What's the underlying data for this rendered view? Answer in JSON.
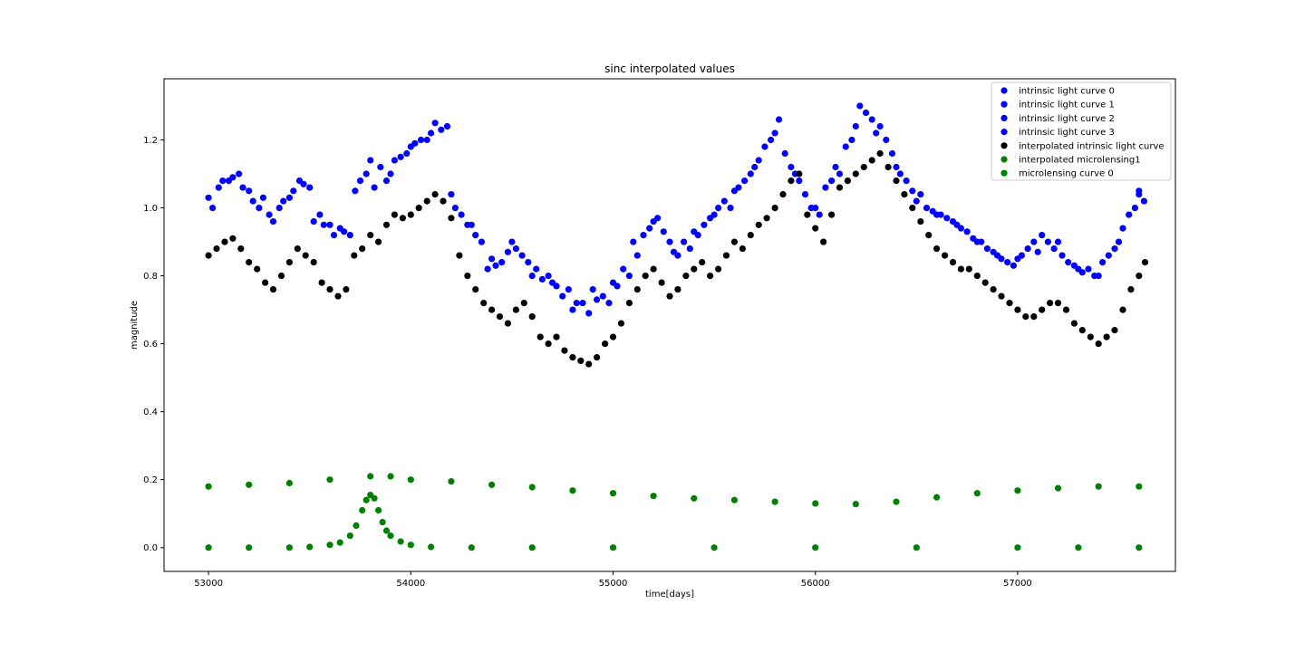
{
  "chart_data": {
    "type": "scatter",
    "title": "sinc interpolated values",
    "xlabel": "time[days]",
    "ylabel": "magnitude",
    "xlim": [
      52780,
      57780
    ],
    "ylim": [
      -0.07,
      1.38
    ],
    "xticks": [
      53000,
      54000,
      55000,
      56000,
      57000
    ],
    "yticks": [
      0.0,
      0.2,
      0.4,
      0.6,
      0.8,
      1.0,
      1.2
    ],
    "grid": false,
    "legend_position": "top-right",
    "series": [
      {
        "name": "intrinsic light curve 0",
        "color": "#0000ff",
        "x": [
          53000,
          53100,
          53200,
          53300,
          53400,
          53500,
          53600,
          53700,
          53750,
          53800,
          53900,
          54000,
          54100,
          54200,
          54300,
          54400,
          54500,
          54600,
          54700,
          54800,
          54900,
          55000,
          55100,
          55200,
          55300,
          55400,
          55500,
          55600,
          55700,
          55800,
          55900,
          56000,
          56100,
          56200,
          56300,
          56400,
          56500,
          56600,
          56700,
          56800,
          56900,
          57000,
          57100,
          57200,
          57300,
          57400,
          57500,
          57600
        ],
        "y": [
          1.03,
          1.08,
          1.05,
          0.98,
          1.03,
          1.06,
          0.95,
          0.92,
          1.08,
          1.14,
          1.1,
          1.18,
          1.22,
          1.04,
          0.95,
          0.85,
          0.9,
          0.8,
          0.78,
          0.7,
          0.76,
          0.78,
          0.9,
          0.96,
          0.87,
          0.93,
          0.98,
          1.05,
          1.12,
          1.22,
          1.1,
          1.0,
          1.12,
          1.24,
          1.22,
          1.12,
          1.02,
          0.98,
          0.95,
          0.9,
          0.86,
          0.85,
          0.87,
          0.9,
          0.82,
          0.8,
          0.9,
          1.04
        ]
      },
      {
        "name": "intrinsic light curve 1",
        "color": "#0000ff",
        "x": [
          53050,
          53150,
          53250,
          53350,
          53450,
          53550,
          53650,
          53725,
          53850,
          53950,
          54050,
          54150,
          54250,
          54350,
          54450,
          54550,
          54650,
          54750,
          54850,
          54950,
          55050,
          55150,
          55250,
          55350,
          55450,
          55550,
          55650,
          55750,
          55850,
          55950,
          56050,
          56150,
          56250,
          56350,
          56450,
          56550,
          56650,
          56750,
          56850,
          56950,
          57050,
          57150,
          57250,
          57350,
          57450,
          57550,
          57625
        ],
        "y": [
          1.06,
          1.1,
          1.0,
          1.0,
          1.08,
          0.98,
          0.94,
          1.05,
          1.12,
          1.15,
          1.2,
          1.23,
          0.98,
          0.9,
          0.84,
          0.86,
          0.79,
          0.74,
          0.72,
          0.74,
          0.82,
          0.92,
          0.93,
          0.9,
          0.95,
          1.02,
          1.08,
          1.18,
          1.16,
          1.04,
          1.06,
          1.18,
          1.28,
          1.2,
          1.08,
          1.0,
          0.97,
          0.93,
          0.88,
          0.84,
          0.88,
          0.9,
          0.84,
          0.82,
          0.86,
          0.98,
          1.02
        ]
      },
      {
        "name": "intrinsic light curve 2",
        "color": "#0000ff",
        "x": [
          53020,
          53120,
          53220,
          53320,
          53420,
          53520,
          53620,
          53780,
          53880,
          53980,
          54080,
          54180,
          54280,
          54380,
          54480,
          54580,
          54680,
          54780,
          54880,
          54980,
          55080,
          55180,
          55280,
          55380,
          55480,
          55580,
          55680,
          55780,
          55880,
          55980,
          56080,
          56180,
          56280,
          56380,
          56480,
          56580,
          56680,
          56780,
          56880,
          56980,
          57080,
          57180,
          57280,
          57380,
          57480,
          57580
        ],
        "y": [
          1.0,
          1.09,
          1.02,
          0.96,
          1.05,
          0.96,
          0.92,
          1.1,
          1.08,
          1.16,
          1.2,
          1.24,
          0.95,
          0.82,
          0.87,
          0.84,
          0.8,
          0.76,
          0.69,
          0.72,
          0.8,
          0.94,
          0.9,
          0.88,
          0.97,
          1.0,
          1.1,
          1.2,
          1.12,
          1.0,
          1.08,
          1.2,
          1.26,
          1.16,
          1.05,
          0.99,
          0.96,
          0.91,
          0.87,
          0.83,
          0.9,
          0.88,
          0.83,
          0.8,
          0.88,
          1.0
        ]
      },
      {
        "name": "intrinsic light curve 3",
        "color": "#0000ff",
        "x": [
          53070,
          53170,
          53270,
          53370,
          53470,
          53570,
          53670,
          53820,
          53920,
          54020,
          54120,
          54220,
          54320,
          54420,
          54520,
          54620,
          54720,
          54820,
          54920,
          55020,
          55120,
          55220,
          55320,
          55420,
          55520,
          55620,
          55720,
          55820,
          55920,
          56020,
          56120,
          56220,
          56320,
          56420,
          56520,
          56620,
          56720,
          56820,
          56920,
          57020,
          57120,
          57220,
          57320,
          57420,
          57520,
          57600
        ],
        "y": [
          1.08,
          1.06,
          1.03,
          1.02,
          1.07,
          0.95,
          0.93,
          1.06,
          1.14,
          1.19,
          1.25,
          1.0,
          0.92,
          0.83,
          0.88,
          0.82,
          0.77,
          0.72,
          0.73,
          0.77,
          0.86,
          0.97,
          0.86,
          0.92,
          1.0,
          1.06,
          1.14,
          1.26,
          1.08,
          0.98,
          1.1,
          1.3,
          1.24,
          1.1,
          1.04,
          0.98,
          0.94,
          0.9,
          0.85,
          0.86,
          0.92,
          0.86,
          0.81,
          0.84,
          0.94,
          1.05
        ]
      },
      {
        "name": "interpolated intrinsic light curve",
        "color": "#000000",
        "x": [
          53000,
          53040,
          53080,
          53120,
          53160,
          53200,
          53240,
          53280,
          53320,
          53360,
          53400,
          53440,
          53480,
          53520,
          53560,
          53600,
          53640,
          53680,
          53720,
          53760,
          53800,
          53840,
          53880,
          53920,
          53960,
          54000,
          54040,
          54080,
          54120,
          54160,
          54200,
          54240,
          54280,
          54320,
          54360,
          54400,
          54440,
          54480,
          54520,
          54560,
          54600,
          54640,
          54680,
          54720,
          54760,
          54800,
          54840,
          54880,
          54920,
          54960,
          55000,
          55040,
          55080,
          55120,
          55160,
          55200,
          55240,
          55280,
          55320,
          55360,
          55400,
          55440,
          55480,
          55520,
          55560,
          55600,
          55640,
          55680,
          55720,
          55760,
          55800,
          55840,
          55880,
          55920,
          55960,
          56000,
          56040,
          56080,
          56120,
          56160,
          56200,
          56240,
          56280,
          56320,
          56360,
          56400,
          56440,
          56480,
          56520,
          56560,
          56600,
          56640,
          56680,
          56720,
          56760,
          56800,
          56840,
          56880,
          56920,
          56960,
          57000,
          57040,
          57080,
          57120,
          57160,
          57200,
          57240,
          57280,
          57320,
          57360,
          57400,
          57440,
          57480,
          57520,
          57560,
          57600,
          57630
        ],
        "y": [
          0.86,
          0.88,
          0.9,
          0.91,
          0.88,
          0.84,
          0.82,
          0.78,
          0.76,
          0.8,
          0.84,
          0.88,
          0.86,
          0.84,
          0.78,
          0.76,
          0.74,
          0.76,
          0.86,
          0.88,
          0.92,
          0.9,
          0.95,
          0.98,
          0.97,
          0.98,
          1.0,
          1.02,
          1.04,
          1.02,
          0.97,
          0.86,
          0.8,
          0.76,
          0.72,
          0.7,
          0.68,
          0.66,
          0.7,
          0.72,
          0.68,
          0.62,
          0.6,
          0.62,
          0.58,
          0.56,
          0.55,
          0.54,
          0.56,
          0.6,
          0.62,
          0.66,
          0.72,
          0.76,
          0.8,
          0.82,
          0.78,
          0.74,
          0.76,
          0.8,
          0.82,
          0.84,
          0.8,
          0.82,
          0.86,
          0.9,
          0.88,
          0.92,
          0.95,
          0.97,
          1.0,
          1.04,
          1.08,
          1.1,
          0.98,
          0.94,
          0.9,
          0.98,
          1.06,
          1.08,
          1.1,
          1.12,
          1.14,
          1.16,
          1.12,
          1.08,
          1.04,
          1.0,
          0.96,
          0.92,
          0.88,
          0.86,
          0.84,
          0.82,
          0.82,
          0.8,
          0.78,
          0.76,
          0.74,
          0.72,
          0.7,
          0.68,
          0.68,
          0.7,
          0.72,
          0.72,
          0.7,
          0.66,
          0.64,
          0.62,
          0.6,
          0.62,
          0.64,
          0.7,
          0.76,
          0.8,
          0.84
        ]
      },
      {
        "name": "interpolated microlensing1",
        "color": "#008000",
        "x": [
          53000,
          53200,
          53400,
          53600,
          53800,
          53900,
          54000,
          54200,
          54400,
          54600,
          54800,
          55000,
          55200,
          55400,
          55600,
          55800,
          56000,
          56200,
          56400,
          56600,
          56800,
          57000,
          57200,
          57400,
          57600
        ],
        "y": [
          0.18,
          0.185,
          0.19,
          0.2,
          0.21,
          0.21,
          0.2,
          0.195,
          0.185,
          0.178,
          0.168,
          0.16,
          0.152,
          0.145,
          0.14,
          0.135,
          0.13,
          0.128,
          0.135,
          0.148,
          0.16,
          0.168,
          0.175,
          0.18,
          0.18
        ]
      },
      {
        "name": "microlensing curve 0",
        "color": "#008000",
        "x": [
          53000,
          53200,
          53400,
          53500,
          53600,
          53650,
          53700,
          53730,
          53760,
          53780,
          53800,
          53820,
          53840,
          53860,
          53880,
          53900,
          53950,
          54000,
          54100,
          54300,
          54600,
          55000,
          55500,
          56000,
          56500,
          57000,
          57300,
          57600
        ],
        "y": [
          0.0,
          0.0,
          0.0,
          0.002,
          0.008,
          0.015,
          0.035,
          0.065,
          0.11,
          0.14,
          0.155,
          0.145,
          0.11,
          0.075,
          0.05,
          0.035,
          0.018,
          0.008,
          0.002,
          0.0,
          0.0,
          0.0,
          0.0,
          0.0,
          0.0,
          0.0,
          0.0,
          0.0
        ]
      }
    ]
  }
}
